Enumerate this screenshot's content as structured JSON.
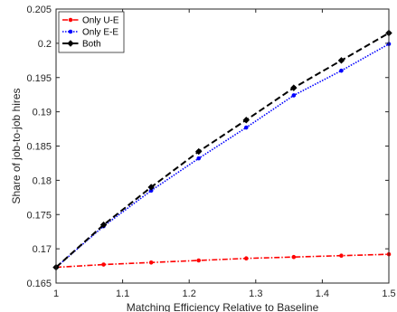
{
  "chart_data": {
    "type": "line",
    "title": "",
    "xlabel": "Matching Efficiency Relative to Baseline",
    "ylabel": "Share of job-to-job hires",
    "xlim": [
      1,
      1.5
    ],
    "ylim": [
      0.165,
      0.205
    ],
    "xticks": [
      1,
      1.1,
      1.2,
      1.3,
      1.4,
      1.5
    ],
    "yticks": [
      0.165,
      0.17,
      0.175,
      0.18,
      0.185,
      0.19,
      0.195,
      0.2,
      0.205
    ],
    "xtick_labels": [
      "1",
      "1.1",
      "1.2",
      "1.3",
      "1.4",
      "1.5"
    ],
    "ytick_labels": [
      "0.165",
      "0.17",
      "0.175",
      "0.18",
      "0.185",
      "0.19",
      "0.195",
      "0.2",
      "0.205"
    ],
    "x": [
      1,
      1.0714,
      1.1429,
      1.2143,
      1.2857,
      1.3571,
      1.4286,
      1.5
    ],
    "legend_position": "top-left",
    "grid": false,
    "series": [
      {
        "name": "Only U-E",
        "color": "#ff0000",
        "linestyle": "dash-dot",
        "marker": "dot",
        "values": [
          0.1673,
          0.1677,
          0.168,
          0.1683,
          0.1686,
          0.1688,
          0.169,
          0.1692
        ]
      },
      {
        "name": "Only E-E",
        "color": "#0000ff",
        "linestyle": "dotted",
        "marker": "dot",
        "values": [
          0.1673,
          0.1733,
          0.1785,
          0.1832,
          0.1877,
          0.1924,
          0.196,
          0.1999
        ]
      },
      {
        "name": "Both",
        "color": "#000000",
        "linestyle": "dashed",
        "marker": "diamond",
        "values": [
          0.1673,
          0.1735,
          0.179,
          0.1842,
          0.1888,
          0.1935,
          0.1975,
          0.2015
        ]
      }
    ]
  }
}
